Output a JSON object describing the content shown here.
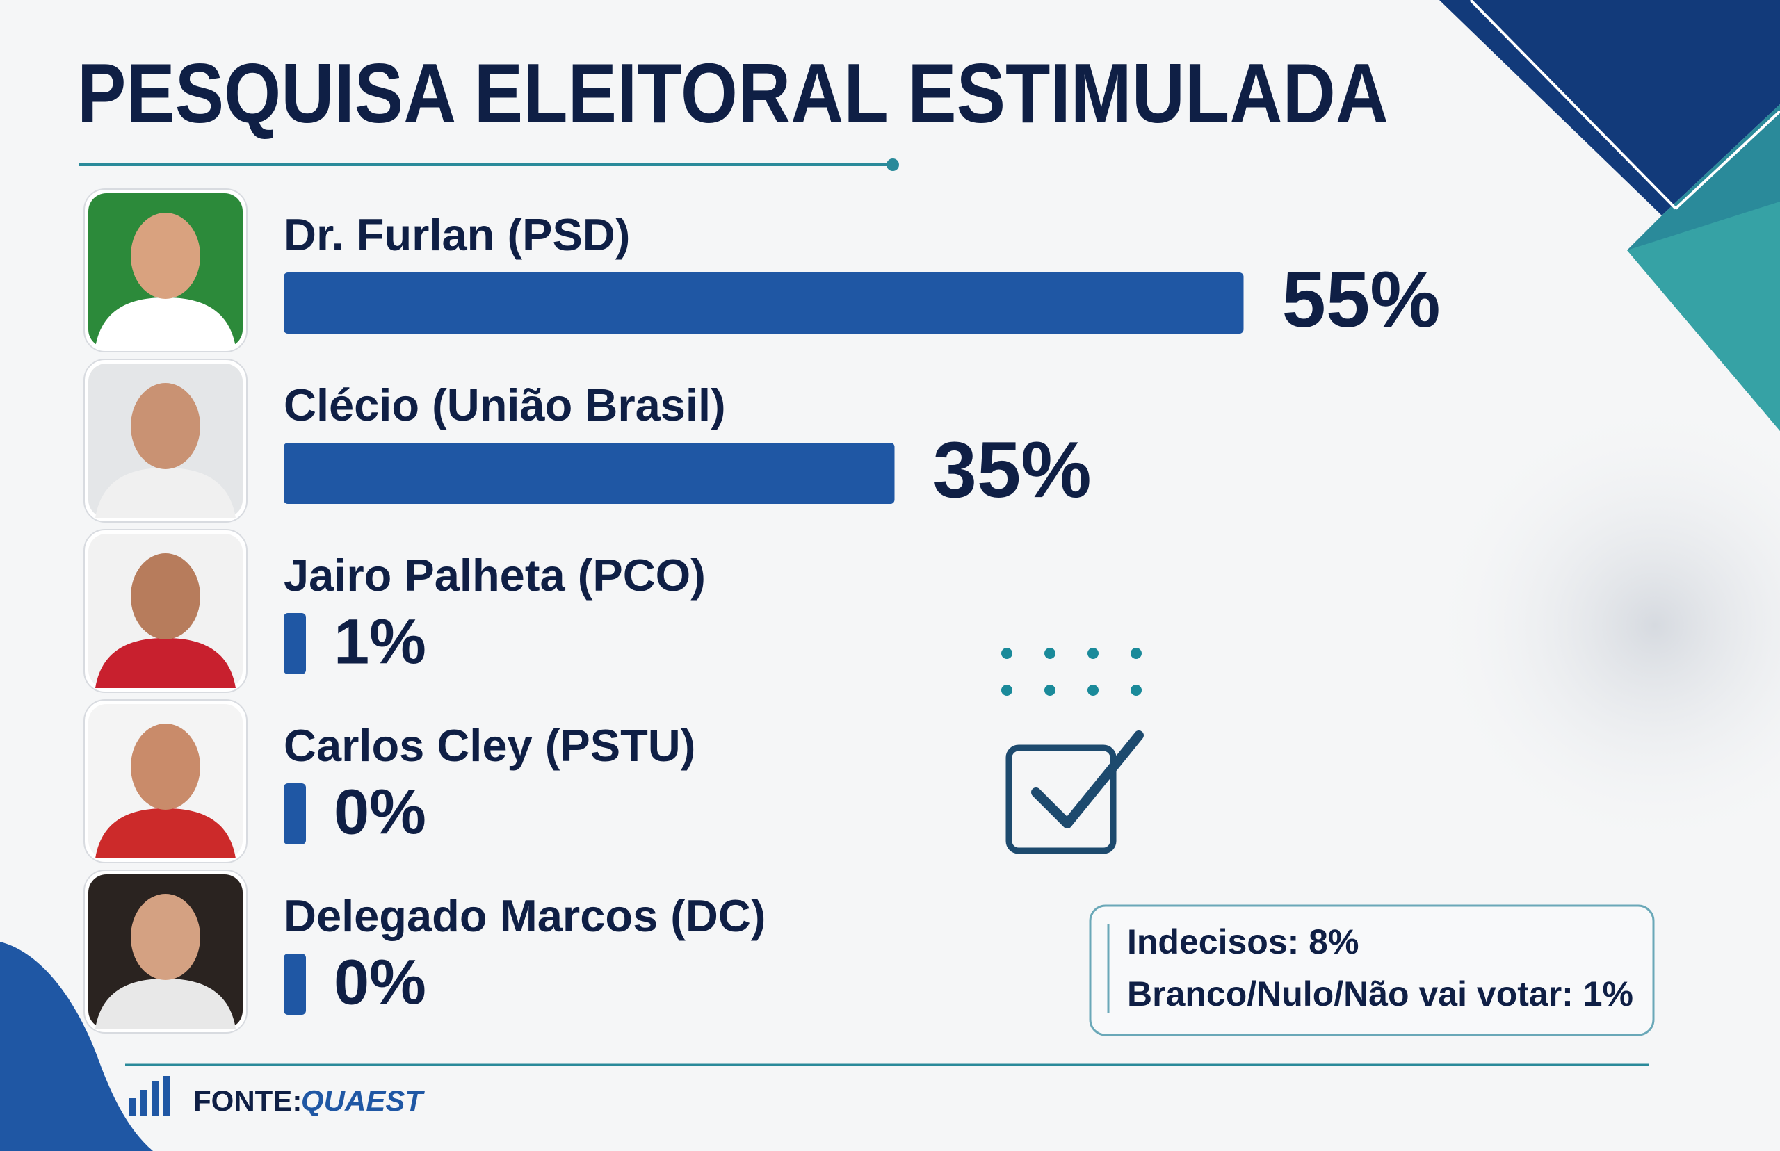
{
  "chart_data": {
    "type": "bar",
    "title": "PESQUISA ELEITORAL ESTIMULADA",
    "categories": [
      "Dr. Furlan (PSD)",
      "Clécio (União Brasil)",
      "Jairo Palheta (PCO)",
      "Carlos Cley (PSTU)",
      "Delegado Marcos (DC)"
    ],
    "values": [
      55,
      35,
      1,
      0,
      0
    ],
    "value_labels": [
      "55%",
      "35%",
      "1%",
      "0%",
      "0%"
    ],
    "color": "#1f57a4",
    "notes": [
      "Indecisos: 8%",
      "Branco/Nulo/Não vai votar: 1%"
    ],
    "source_label": "FONTE:",
    "source": "QUAEST"
  }
}
